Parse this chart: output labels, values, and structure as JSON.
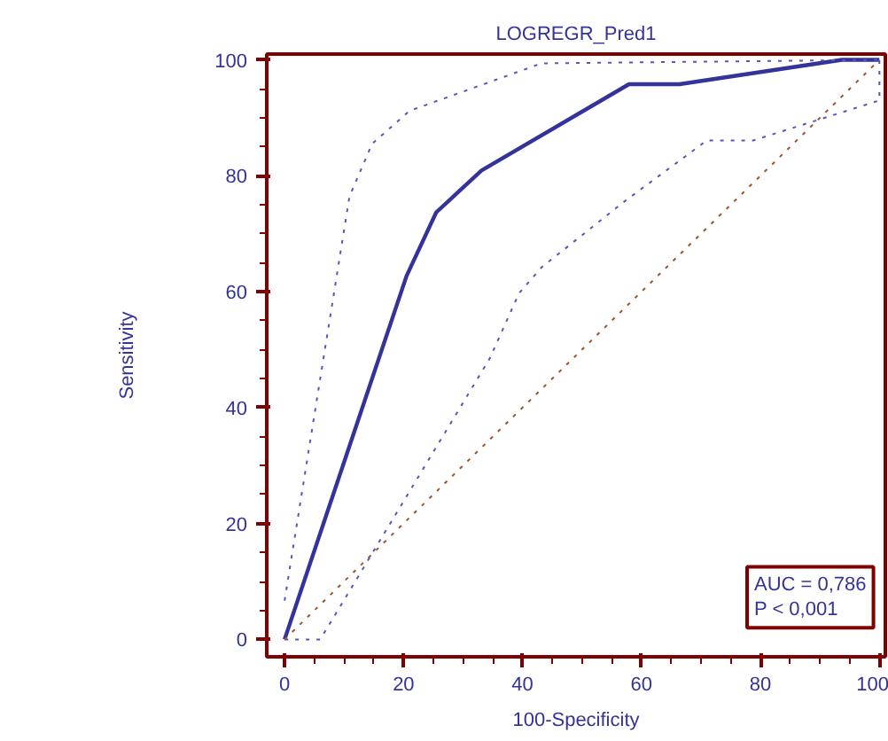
{
  "chart_data": {
    "type": "line",
    "title": "LOGREGR_Pred1",
    "xlabel": "100-Specificity",
    "ylabel": "Sensitivity",
    "xlim": [
      -3,
      101
    ],
    "ylim": [
      -3,
      101
    ],
    "xticks": [
      0,
      20,
      40,
      60,
      80,
      100
    ],
    "yticks": [
      0,
      20,
      40,
      60,
      80,
      100
    ],
    "grid": false,
    "marker": "none",
    "series": [
      {
        "color": "#333399",
        "line_style": "solid",
        "x": [
          0,
          20.5,
          25.5,
          33.1,
          57.9,
          66.4,
          93.7,
          100
        ],
        "values": [
          0,
          62.7,
          73.7,
          80.9,
          95.8,
          95.8,
          100,
          100
        ]
      },
      {
        "color": "#5555bb",
        "line_style": "dotted",
        "x": [
          0,
          10.9,
          14.7,
          21,
          43.2,
          100
        ],
        "values": [
          6.7,
          76.4,
          85.5,
          91.2,
          99.4,
          100
        ]
      },
      {
        "color": "#5555bb",
        "line_style": "dotted",
        "x": [
          0,
          6,
          34.5,
          39.4,
          43.2,
          57.3,
          71,
          78.8,
          100,
          100
        ],
        "values": [
          0,
          0,
          48.5,
          59.7,
          64.2,
          75.7,
          86.1,
          86.1,
          93,
          100
        ]
      },
      {
        "color": "#a0522d",
        "line_style": "dotted",
        "x": [
          0,
          100
        ],
        "values": [
          0,
          100
        ]
      }
    ],
    "annotations": [
      "AUC = 0,786",
      "P < 0,001"
    ]
  }
}
